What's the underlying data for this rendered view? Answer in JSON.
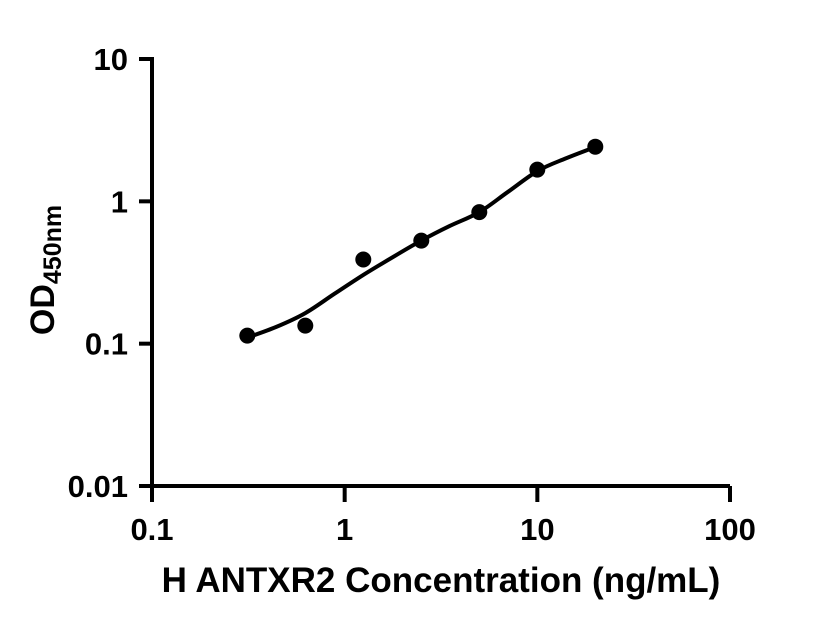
{
  "figure": {
    "background": "#ffffff",
    "ink_color": "#000000"
  },
  "chart_data": {
    "type": "scatter",
    "subtype": "standard-curve-with-fit",
    "title": "",
    "xlabel": "H ANTXR2 Concentration (ng/mL)",
    "ylabel_base": "OD",
    "ylabel_subscript": "450nm",
    "x_scale": "log",
    "y_scale": "log",
    "xlim": [
      0.1,
      100
    ],
    "ylim": [
      0.01,
      10
    ],
    "x_tick_values": [
      0.1,
      1,
      10,
      100
    ],
    "x_tick_labels": [
      "0.1",
      "1",
      "10",
      "100"
    ],
    "y_tick_values": [
      0.01,
      0.1,
      1,
      10
    ],
    "y_tick_labels": [
      "0.01",
      "0.1",
      "1",
      "10"
    ],
    "grid": false,
    "legend": "none",
    "marker": {
      "shape": "filled-circle",
      "color": "#000000"
    },
    "line_color": "#000000",
    "points": [
      {
        "x": 0.3125,
        "y": 0.114
      },
      {
        "x": 0.625,
        "y": 0.134
      },
      {
        "x": 1.25,
        "y": 0.39
      },
      {
        "x": 2.5,
        "y": 0.53
      },
      {
        "x": 5,
        "y": 0.84
      },
      {
        "x": 10,
        "y": 1.67
      },
      {
        "x": 20,
        "y": 2.42
      }
    ],
    "fit_curve": [
      [
        0.31,
        0.11
      ],
      [
        0.44,
        0.131
      ],
      [
        0.625,
        0.164
      ],
      [
        0.88,
        0.223
      ],
      [
        1.25,
        0.304
      ],
      [
        1.8,
        0.41
      ],
      [
        2.5,
        0.53
      ],
      [
        3.5,
        0.67
      ],
      [
        5,
        0.84
      ],
      [
        7,
        1.16
      ],
      [
        10,
        1.63
      ],
      [
        14,
        2.0
      ],
      [
        20,
        2.41
      ]
    ]
  }
}
